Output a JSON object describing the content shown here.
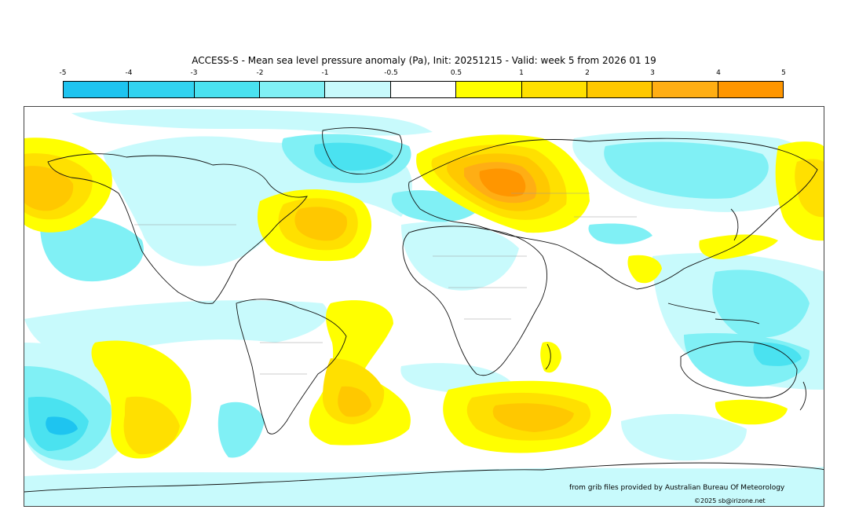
{
  "title": "ACCESS-S - Mean sea level pressure anomaly (Pa), Init: 20251215 - Valid: week 5 from 2026 01 19",
  "colorbar": {
    "ticks": [
      "-5",
      "-4",
      "-3",
      "-2",
      "-1",
      "-0.5",
      "0.5",
      "1",
      "2",
      "3",
      "4",
      "5"
    ],
    "colors": [
      "#1ec4f0",
      "#32d3f0",
      "#4ae2f0",
      "#80f0f5",
      "#c8fafc",
      "#ffffff",
      "#ffff00",
      "#ffe000",
      "#ffc800",
      "#ffae14",
      "#ff9600"
    ]
  },
  "credit": "from grib files provided by Australian Bureau Of Meteorology",
  "copyright": "©2025 sb@irizone.net",
  "palette": {
    "neg_light": "#c8fafc",
    "neg_mid": "#80f0f5",
    "neg_strong": "#4ae2f0",
    "neg_deep": "#1ec4f0",
    "pos_light": "#ffff00",
    "pos_mid": "#ffe000",
    "pos_strong": "#ffc800",
    "pos_deep": "#ffae14",
    "pos_max": "#ff9600",
    "coast": "#111111",
    "borders": "#9a9a9a"
  }
}
